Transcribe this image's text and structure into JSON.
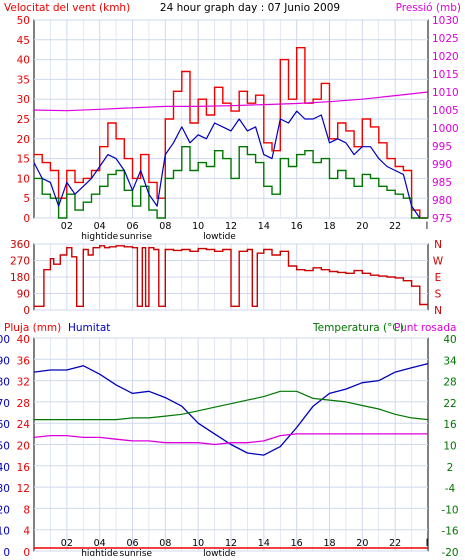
{
  "title": "24 hour graph day : 07 Junio 2009",
  "colors": {
    "wind_gust": "#ee0000",
    "wind_avg": "#0000bb",
    "wind_min": "#007700",
    "pressure": "#dd00dd",
    "direction": "#cc0000",
    "humidity": "#0000bb",
    "temperature": "#007700",
    "dewpoint": "#dd00dd",
    "rain": "#ee0000",
    "grid": "#cfd8ee",
    "frame": "#000000"
  },
  "x_ticks": [
    "02",
    "04",
    "06",
    "08",
    "10",
    "12",
    "14",
    "16",
    "18",
    "20",
    "22"
  ],
  "x_markers": [
    {
      "label": "hightide",
      "hour": 4
    },
    {
      "label": "sunrise",
      "hour": 6.2
    },
    {
      "label": "lowtide",
      "hour": 11.3
    }
  ],
  "x_end_tick": "l",
  "chart_data": [
    {
      "type": "line",
      "panel": "wind",
      "left_label": "Velocitat del vent (kmh)",
      "right_label": "Pressió (mb)",
      "ylim": [
        0,
        50
      ],
      "y_ticks": [
        0,
        5,
        10,
        15,
        20,
        25,
        30,
        35,
        40,
        45,
        50
      ],
      "y2lim": [
        975,
        1030
      ],
      "y2_ticks": [
        975,
        980,
        985,
        990,
        995,
        1000,
        1005,
        1010,
        1015,
        1020,
        1025,
        1030
      ],
      "xlim": [
        0,
        24
      ],
      "series": [
        {
          "key": "gust",
          "x": [
            0,
            0.5,
            1,
            1.5,
            2,
            2.5,
            3,
            3.5,
            4,
            4.5,
            5,
            5.5,
            6,
            6.5,
            7,
            7.5,
            8,
            8.5,
            9,
            9.5,
            10,
            10.5,
            11,
            11.5,
            12,
            12.5,
            13,
            13.5,
            14,
            14.5,
            15,
            15.5,
            16,
            16.5,
            17,
            17.5,
            18,
            18.5,
            19,
            19.5,
            20,
            20.5,
            21,
            21.5,
            22,
            22.5,
            23,
            23.5
          ],
          "values": [
            16,
            14,
            12,
            5,
            12,
            9,
            10,
            12,
            18,
            24,
            20,
            15,
            10,
            16,
            9,
            5,
            25,
            32,
            37,
            24,
            30,
            26,
            33,
            29,
            27,
            32,
            29,
            31,
            19,
            17,
            40,
            30,
            43,
            29,
            30,
            34,
            20,
            24,
            22,
            18,
            25,
            23,
            19,
            15,
            13,
            12,
            2,
            0
          ]
        },
        {
          "key": "avg",
          "x": [
            0,
            0.5,
            1,
            1.5,
            2,
            2.5,
            3,
            3.5,
            4,
            4.5,
            5,
            5.5,
            6,
            6.5,
            7,
            7.5,
            8,
            8.5,
            9,
            9.5,
            10,
            10.5,
            11,
            11.5,
            12,
            12.5,
            13,
            13.5,
            14,
            14.5,
            15,
            15.5,
            16,
            16.5,
            17,
            17.5,
            18,
            18.5,
            19,
            19.5,
            20,
            20.5,
            21,
            21.5,
            22,
            22.5,
            23,
            23.5
          ],
          "values": [
            14,
            10,
            9,
            3,
            9,
            6,
            8,
            10,
            13,
            16,
            15,
            12,
            7,
            12,
            6,
            3,
            16,
            19,
            23,
            19,
            21,
            20,
            24,
            23,
            22,
            25,
            22,
            23,
            16,
            15,
            25,
            24,
            27,
            25,
            25,
            26,
            19,
            20,
            19,
            16,
            18,
            18,
            15,
            13,
            12,
            11,
            3,
            0
          ]
        },
        {
          "key": "min",
          "x": [
            0,
            0.5,
            1,
            1.5,
            2,
            2.5,
            3,
            3.5,
            4,
            4.5,
            5,
            5.5,
            6,
            6.5,
            7,
            7.5,
            8,
            8.5,
            9,
            9.5,
            10,
            10.5,
            11,
            11.5,
            12,
            12.5,
            13,
            13.5,
            14,
            14.5,
            15,
            15.5,
            16,
            16.5,
            17,
            17.5,
            18,
            18.5,
            19,
            19.5,
            20,
            20.5,
            21,
            21.5,
            22,
            22.5,
            23,
            23.5
          ],
          "values": [
            10,
            6,
            5,
            0,
            6,
            2,
            4,
            6,
            8,
            11,
            12,
            7,
            3,
            8,
            2,
            0,
            10,
            12,
            18,
            12,
            14,
            13,
            17,
            15,
            10,
            18,
            16,
            14,
            8,
            6,
            15,
            13,
            16,
            17,
            14,
            15,
            10,
            12,
            10,
            8,
            11,
            10,
            8,
            7,
            6,
            5,
            0,
            0
          ]
        },
        {
          "key": "pressure",
          "axis": "y2",
          "x": [
            0,
            2,
            4,
            6,
            8,
            10,
            12,
            14,
            16,
            18,
            20,
            22,
            24
          ],
          "values": [
            1005,
            1004.8,
            1005.2,
            1005.6,
            1006,
            1006,
            1006.2,
            1006.5,
            1006.8,
            1007.3,
            1008,
            1009,
            1010
          ]
        }
      ]
    },
    {
      "type": "line",
      "panel": "direction",
      "ylim": [
        0,
        360
      ],
      "y_ticks": [
        0,
        90,
        180,
        270,
        360
      ],
      "y2_ticks": [
        "N",
        "S",
        "E",
        "W",
        "N"
      ],
      "xlim": [
        0,
        24
      ],
      "series": [
        {
          "key": "direction",
          "x": [
            0,
            0.3,
            0.6,
            1,
            1.2,
            1.6,
            2,
            2.3,
            2.6,
            3,
            3.3,
            3.6,
            4,
            4.3,
            4.6,
            5,
            5.5,
            6,
            6.3,
            6.6,
            6.8,
            7,
            7.3,
            7.6,
            8,
            8.5,
            9,
            9.5,
            10,
            10.5,
            11,
            11.5,
            12,
            12.5,
            13,
            13.3,
            13.6,
            14,
            14.5,
            15,
            15.5,
            16,
            16.5,
            17,
            17.5,
            18,
            18.5,
            19,
            19.5,
            20,
            20.5,
            21,
            21.5,
            22,
            22.5,
            23,
            23.5
          ],
          "values": [
            20,
            20,
            220,
            280,
            250,
            300,
            340,
            290,
            20,
            330,
            300,
            340,
            350,
            340,
            345,
            350,
            345,
            340,
            20,
            340,
            20,
            340,
            330,
            20,
            330,
            325,
            330,
            320,
            335,
            330,
            320,
            330,
            20,
            320,
            330,
            20,
            310,
            330,
            300,
            320,
            240,
            220,
            215,
            230,
            220,
            210,
            205,
            200,
            215,
            200,
            190,
            185,
            180,
            175,
            160,
            130,
            30
          ]
        }
      ]
    },
    {
      "type": "line",
      "panel": "humidity_temperature",
      "left_label": "Pluja (mm)",
      "left2_label": "Humitat",
      "right_label": "Temperatura (°C)",
      "right2_label": "Punt rosada",
      "ylim": [
        0,
        100
      ],
      "y_ticks": [
        0,
        10,
        20,
        30,
        40,
        50,
        60,
        70,
        80,
        90,
        100
      ],
      "rain_ticks": [
        0,
        4,
        8,
        12,
        16,
        20,
        24,
        28,
        32,
        36,
        40
      ],
      "temp_lim": [
        -20,
        40
      ],
      "temp_ticks": [
        -20,
        -16,
        -10,
        -4,
        2,
        10,
        16,
        22,
        28,
        34,
        40
      ],
      "xlim": [
        0,
        24
      ],
      "series": [
        {
          "key": "humidity",
          "x": [
            0,
            1,
            2,
            3,
            4,
            5,
            6,
            7,
            8,
            9,
            10,
            11,
            12,
            13,
            14,
            15,
            16,
            17,
            18,
            19,
            20,
            21,
            22,
            23,
            24
          ],
          "values": [
            84,
            85,
            85,
            87,
            83,
            78,
            74,
            75,
            72,
            68,
            60,
            55,
            50,
            46,
            45,
            49,
            58,
            68,
            74,
            76,
            79,
            80,
            84,
            86,
            88
          ]
        },
        {
          "key": "temperature",
          "axis": "temp",
          "x": [
            0,
            1,
            2,
            3,
            4,
            5,
            6,
            7,
            8,
            9,
            10,
            11,
            12,
            13,
            14,
            15,
            16,
            17,
            18,
            19,
            20,
            21,
            22,
            23,
            24
          ],
          "values": [
            17,
            17,
            17,
            17,
            17,
            17,
            17.5,
            17.5,
            18,
            18.5,
            19.5,
            20.5,
            21.5,
            22.5,
            23.5,
            25,
            25,
            23,
            22.5,
            22,
            21,
            20,
            18.5,
            17.5,
            17
          ]
        },
        {
          "key": "dewpoint",
          "axis": "temp",
          "x": [
            0,
            1,
            2,
            3,
            4,
            5,
            6,
            7,
            8,
            9,
            10,
            11,
            12,
            13,
            14,
            15,
            16,
            17,
            18,
            19,
            20,
            21,
            22,
            23,
            24
          ],
          "values": [
            12,
            12.5,
            12.5,
            12,
            12,
            11.5,
            11,
            11,
            10.5,
            10.5,
            10.5,
            10,
            10.5,
            10.5,
            11,
            12.5,
            13,
            13,
            13,
            13,
            13,
            13,
            13,
            13,
            13
          ]
        },
        {
          "key": "rain",
          "axis": "rain",
          "x": [
            0,
            24
          ],
          "values": [
            0,
            0
          ]
        }
      ]
    }
  ]
}
